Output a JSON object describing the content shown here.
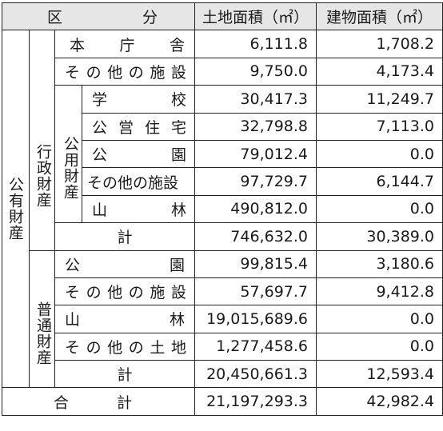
{
  "header": {
    "kubun_1": "区",
    "kubun_2": "分",
    "land": "土地面積（㎡）",
    "building": "建物面積（㎡）"
  },
  "groups": {
    "public": "公有財産",
    "administrative": "行政財産",
    "public_use": "公用財産",
    "ordinary": "普通財産"
  },
  "rows": {
    "honcho": {
      "label_chars": [
        "本",
        "庁",
        "舎"
      ],
      "land": "6,111.8",
      "building": "1,708.2"
    },
    "admin_other": {
      "label_chars": [
        "そ",
        "の",
        "他",
        "の",
        "施",
        "設"
      ],
      "land": "9,750.0",
      "building": "4,173.4"
    },
    "school": {
      "label_chars": [
        "学",
        "校"
      ],
      "land": "30,417.3",
      "building": "11,249.7"
    },
    "housing": {
      "label_chars": [
        "公",
        "営",
        "住",
        "宅"
      ],
      "land": "32,798.8",
      "building": "7,113.0"
    },
    "park": {
      "label_chars": [
        "公",
        "園"
      ],
      "land": "79,012.4",
      "building": "0.0"
    },
    "pu_other": {
      "label": "その他の施設",
      "land": "97,729.7",
      "building": "6,144.7"
    },
    "mountain": {
      "label_chars": [
        "山",
        "林"
      ],
      "land": "490,812.0",
      "building": "0.0"
    },
    "admin_total": {
      "label": "計",
      "land": "746,632.0",
      "building": "30,389.0"
    },
    "ord_park": {
      "label_chars": [
        "公",
        "園"
      ],
      "land": "99,815.4",
      "building": "3,180.6"
    },
    "ord_other": {
      "label_chars": [
        "そ",
        "の",
        "他",
        "の",
        "施",
        "設"
      ],
      "land": "57,697.7",
      "building": "9,412.8"
    },
    "ord_mountain": {
      "label_chars": [
        "山",
        "林"
      ],
      "land": "19,015,689.6",
      "building": "0.0"
    },
    "ord_land": {
      "label_chars": [
        "そ",
        "の",
        "他",
        "の",
        "土",
        "地"
      ],
      "land": "1,277,458.6",
      "building": "0.0"
    },
    "ord_total": {
      "label": "計",
      "land": "20,450,661.3",
      "building": "12,593.4"
    },
    "grand_total": {
      "label_1": "合",
      "label_2": "計",
      "land": "21,197,293.3",
      "building": "42,982.4"
    }
  }
}
